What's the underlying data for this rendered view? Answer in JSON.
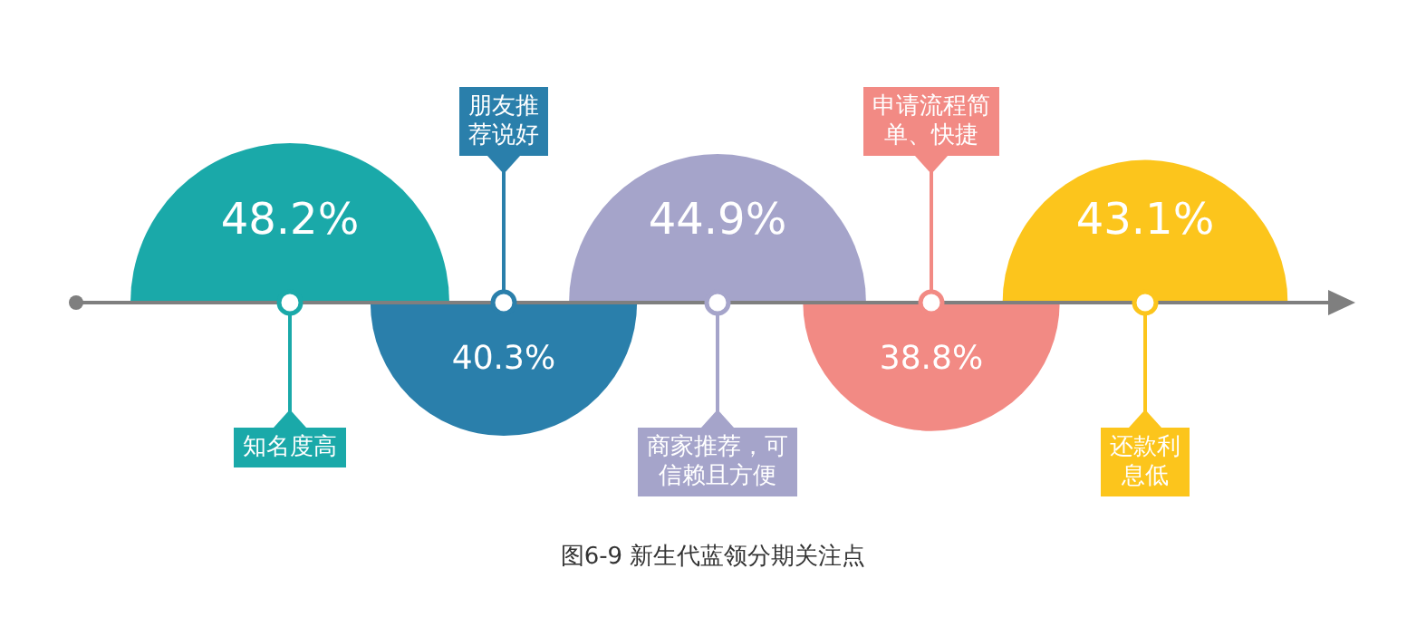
{
  "chart_data": {
    "type": "other",
    "title": "图6-9 新生代蓝领分期关注点",
    "categories": [
      "知名度高",
      "朋友推荐说好",
      "商家推荐，可信赖且方便",
      "申请流程简单、快捷",
      "还款利息低"
    ],
    "values": [
      48.2,
      40.3,
      44.9,
      38.8,
      43.1
    ],
    "value_labels": [
      "48.2%",
      "40.3%",
      "44.9%",
      "38.8%",
      "43.1%"
    ],
    "colors": [
      "#1aa9a9",
      "#2a7fab",
      "#a5a4ca",
      "#f28a84",
      "#fcc51c"
    ]
  }
}
